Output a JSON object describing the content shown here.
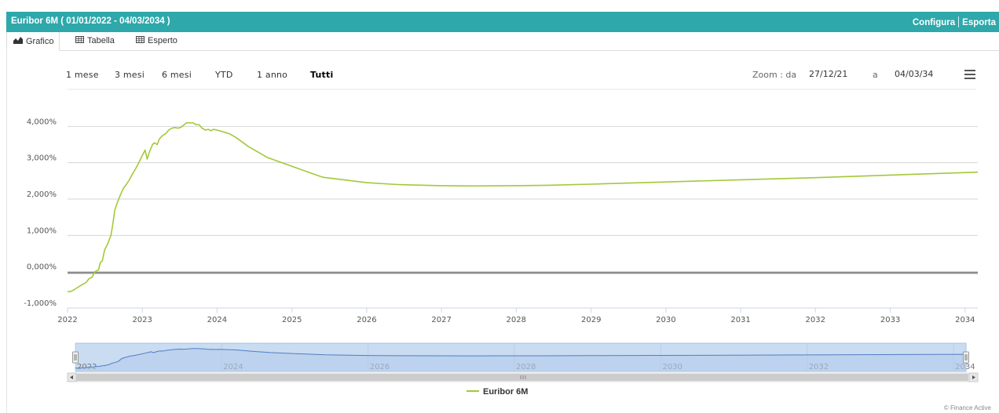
{
  "window": {
    "title": "Euribor 6M ( 01/01/2022 - 04/03/2034 )",
    "actions": [
      "Configura",
      "Esporta"
    ]
  },
  "tabs": [
    {
      "label": "Grafico",
      "icon": "area-chart-icon",
      "active": true
    },
    {
      "label": "Tabella",
      "icon": "table-icon",
      "active": false
    },
    {
      "label": "Esperto",
      "icon": "table-icon",
      "active": false
    }
  ],
  "range_selector": {
    "buttons": [
      "1 mese",
      "3 mesi",
      "6 mesi",
      "YTD",
      "1 anno",
      "Tutti"
    ],
    "selected": "Tutti",
    "zoom_label": "Zoom : da",
    "from": "27/12/21",
    "to_label": "a",
    "to": "04/03/34"
  },
  "colors": {
    "header": "#2ea8aa",
    "series": "#a2c93a",
    "navigator_fill": "#c9dcf2",
    "navigator_line": "#4f7fc4"
  },
  "credits": "© Finance Active",
  "chart_data": {
    "type": "line",
    "title": "",
    "xlabel": "",
    "ylabel": "",
    "x_ticks": [
      "2022",
      "2023",
      "2024",
      "2025",
      "2026",
      "2027",
      "2028",
      "2029",
      "2030",
      "2031",
      "2032",
      "2033",
      "2034"
    ],
    "y_ticks": [
      "-1,000%",
      "0,000%",
      "1,000%",
      "2,000%",
      "3,000%",
      "4,000%"
    ],
    "xlim": [
      "2022-01-01",
      "2034-03-04"
    ],
    "ylim": [
      -1,
      5
    ],
    "grid": true,
    "legend": "bottom-center",
    "navigator_ticks": [
      "2022",
      "2024",
      "2026",
      "2028",
      "2030",
      "2032",
      "2034"
    ],
    "series": [
      {
        "name": "Euribor 6M",
        "points": [
          [
            "2022-01-01",
            -0.55
          ],
          [
            "2022-01-15",
            -0.55
          ],
          [
            "2022-02-01",
            -0.5
          ],
          [
            "2022-02-15",
            -0.45
          ],
          [
            "2022-03-01",
            -0.4
          ],
          [
            "2022-03-15",
            -0.35
          ],
          [
            "2022-04-01",
            -0.3
          ],
          [
            "2022-04-15",
            -0.2
          ],
          [
            "2022-05-01",
            -0.15
          ],
          [
            "2022-05-15",
            0.0
          ],
          [
            "2022-06-01",
            0.05
          ],
          [
            "2022-06-10",
            0.25
          ],
          [
            "2022-06-20",
            0.3
          ],
          [
            "2022-07-01",
            0.6
          ],
          [
            "2022-07-15",
            0.75
          ],
          [
            "2022-08-01",
            1.0
          ],
          [
            "2022-08-10",
            1.3
          ],
          [
            "2022-08-20",
            1.7
          ],
          [
            "2022-09-01",
            1.9
          ],
          [
            "2022-09-15",
            2.1
          ],
          [
            "2022-10-01",
            2.3
          ],
          [
            "2022-10-15",
            2.4
          ],
          [
            "2022-11-01",
            2.55
          ],
          [
            "2022-11-15",
            2.7
          ],
          [
            "2022-12-01",
            2.85
          ],
          [
            "2022-12-15",
            3.0
          ],
          [
            "2023-01-01",
            3.2
          ],
          [
            "2023-01-15",
            3.35
          ],
          [
            "2023-01-25",
            3.1
          ],
          [
            "2023-02-05",
            3.3
          ],
          [
            "2023-02-20",
            3.5
          ],
          [
            "2023-03-01",
            3.55
          ],
          [
            "2023-03-15",
            3.5
          ],
          [
            "2023-03-25",
            3.65
          ],
          [
            "2023-04-10",
            3.75
          ],
          [
            "2023-04-25",
            3.8
          ],
          [
            "2023-05-10",
            3.9
          ],
          [
            "2023-05-25",
            3.95
          ],
          [
            "2023-06-10",
            3.97
          ],
          [
            "2023-06-25",
            3.95
          ],
          [
            "2023-07-10",
            3.98
          ],
          [
            "2023-07-25",
            4.05
          ],
          [
            "2023-08-05",
            4.1
          ],
          [
            "2023-08-20",
            4.1
          ],
          [
            "2023-09-05",
            4.1
          ],
          [
            "2023-09-20",
            4.05
          ],
          [
            "2023-10-05",
            4.05
          ],
          [
            "2023-10-20",
            3.95
          ],
          [
            "2023-11-05",
            3.9
          ],
          [
            "2023-11-20",
            3.92
          ],
          [
            "2023-12-01",
            3.88
          ],
          [
            "2023-12-15",
            3.92
          ],
          [
            "2024-01-01",
            3.9
          ],
          [
            "2024-02-01",
            3.85
          ],
          [
            "2024-03-01",
            3.8
          ],
          [
            "2024-04-01",
            3.7
          ],
          [
            "2024-06-01",
            3.45
          ],
          [
            "2024-09-01",
            3.15
          ],
          [
            "2025-01-01",
            2.9
          ],
          [
            "2025-06-01",
            2.6
          ],
          [
            "2026-01-01",
            2.45
          ],
          [
            "2026-06-01",
            2.4
          ],
          [
            "2027-01-01",
            2.37
          ],
          [
            "2027-06-01",
            2.36
          ],
          [
            "2028-01-01",
            2.37
          ],
          [
            "2028-06-01",
            2.38
          ],
          [
            "2029-01-01",
            2.41
          ],
          [
            "2030-01-01",
            2.47
          ],
          [
            "2031-01-01",
            2.53
          ],
          [
            "2032-01-01",
            2.59
          ],
          [
            "2033-01-01",
            2.66
          ],
          [
            "2034-03-04",
            2.74
          ]
        ]
      }
    ]
  }
}
